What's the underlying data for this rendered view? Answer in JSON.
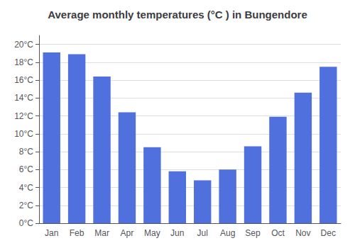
{
  "chart_data": {
    "type": "bar",
    "title": "Average monthly temperatures (°C ) in Bungendore",
    "categories": [
      "Jan",
      "Feb",
      "Mar",
      "Apr",
      "May",
      "Jun",
      "Jul",
      "Aug",
      "Sep",
      "Oct",
      "Nov",
      "Dec"
    ],
    "values": [
      19.1,
      18.9,
      16.4,
      12.4,
      8.5,
      5.8,
      4.8,
      6.0,
      8.6,
      11.9,
      14.6,
      17.5
    ],
    "ylim": [
      0,
      21
    ],
    "yticks": [
      {
        "value": 0,
        "label": "0°C"
      },
      {
        "value": 2,
        "label": "2°C"
      },
      {
        "value": 4,
        "label": "4°C"
      },
      {
        "value": 6,
        "label": "6°C"
      },
      {
        "value": 8,
        "label": "8°C"
      },
      {
        "value": 10,
        "label": "10°C"
      },
      {
        "value": 12,
        "label": "12°C"
      },
      {
        "value": 14,
        "label": "14°C"
      },
      {
        "value": 16,
        "label": "16°C"
      },
      {
        "value": 18,
        "label": "18°C"
      },
      {
        "value": 20,
        "label": "20°C"
      }
    ],
    "grid": true
  }
}
